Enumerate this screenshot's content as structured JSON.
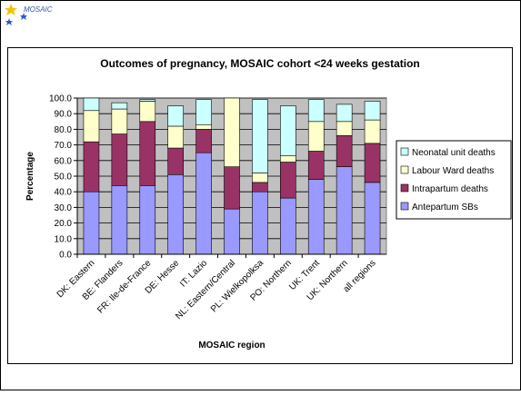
{
  "logo": "MOSAIC",
  "chart_data": {
    "type": "stacked_bar",
    "title": "Outcomes of pregnancy, MOSAIC cohort <24 weeks gestation",
    "x_label": "MOSAIC region",
    "y_label": "Percentage",
    "categories": [
      "DK: Eastern",
      "BE: Flanders",
      "FR: Ile-de-France",
      "DE: Hesse",
      "IT: Lazio",
      "NL: Eastern/Central",
      "PL: Wielkopolksa",
      "PO: Northern",
      "UK: Trent",
      "UK: Northern",
      "all regions"
    ],
    "series": [
      {
        "name": "Antepartum SBs",
        "color": "#9999ff",
        "values": [
          40,
          44,
          44,
          51,
          65,
          29,
          40,
          36,
          48,
          56,
          46
        ]
      },
      {
        "name": "Intrapartum deaths",
        "color": "#993366",
        "values": [
          32,
          33,
          41,
          17,
          15,
          27,
          6,
          23,
          18,
          20,
          25
        ]
      },
      {
        "name": "Labour Ward deaths",
        "color": "#ffffcc",
        "values": [
          20,
          16,
          13,
          14,
          3,
          44,
          6,
          4,
          19,
          9,
          15
        ]
      },
      {
        "name": "Neonatal unit deaths",
        "color": "#ccffff",
        "values": [
          8,
          4,
          1,
          13,
          16,
          0,
          47,
          32,
          14,
          11,
          12
        ]
      }
    ],
    "ylim": [
      0,
      100
    ],
    "yticks": [
      {
        "value": 0,
        "label": "0.0"
      },
      {
        "value": 10,
        "label": "10.0"
      },
      {
        "value": 20,
        "label": "20.0"
      },
      {
        "value": 30,
        "label": "30.0"
      },
      {
        "value": 40,
        "label": "40.0"
      },
      {
        "value": 50,
        "label": "50.0"
      },
      {
        "value": 60,
        "label": "60.0"
      },
      {
        "value": 70,
        "label": "70.0"
      },
      {
        "value": 80,
        "label": "80.0"
      },
      {
        "value": 90,
        "label": "90.0"
      },
      {
        "value": 100,
        "label": "100.0"
      }
    ],
    "grid": true,
    "legend": "right",
    "plot_background": "#c0c0c0"
  }
}
